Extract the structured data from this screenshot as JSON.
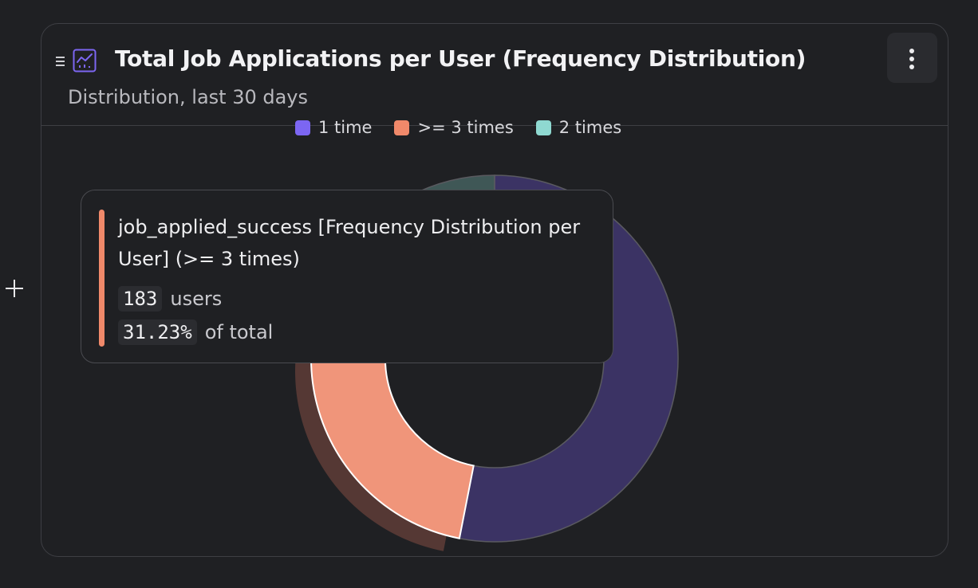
{
  "widget": {
    "title": "Total Job Applications per User (Frequency Distribution)",
    "subtitle": "Distribution, last 30 days"
  },
  "icons": {
    "add": "plus-icon",
    "drag": "drag-handle-icon",
    "chart": "line-chart-icon",
    "menu": "more-vertical-icon"
  },
  "chart_data": {
    "type": "pie",
    "style": "donut",
    "legend_position": "top-center",
    "categories": [
      "1 time",
      ">= 3 times",
      "2 times"
    ],
    "values": [
      311,
      183,
      92
    ],
    "percent": [
      53.07,
      31.23,
      15.7
    ],
    "colors": [
      "#7c66f2",
      "#f0896a",
      "#8fd9d1"
    ],
    "highlighted": ">= 3 times"
  },
  "legend": [
    {
      "label": "1 time",
      "color": "#7c66f2"
    },
    {
      "label": ">= 3 times",
      "color": "#f0896a"
    },
    {
      "label": "2 times",
      "color": "#8fd9d1"
    }
  ],
  "tooltip": {
    "title": "job_applied_success [Frequency Distribution per User] (>= 3 times)",
    "count": "183",
    "count_label": "users",
    "percent": "31.23%",
    "percent_label": "of total",
    "accent": "#f0896a"
  }
}
